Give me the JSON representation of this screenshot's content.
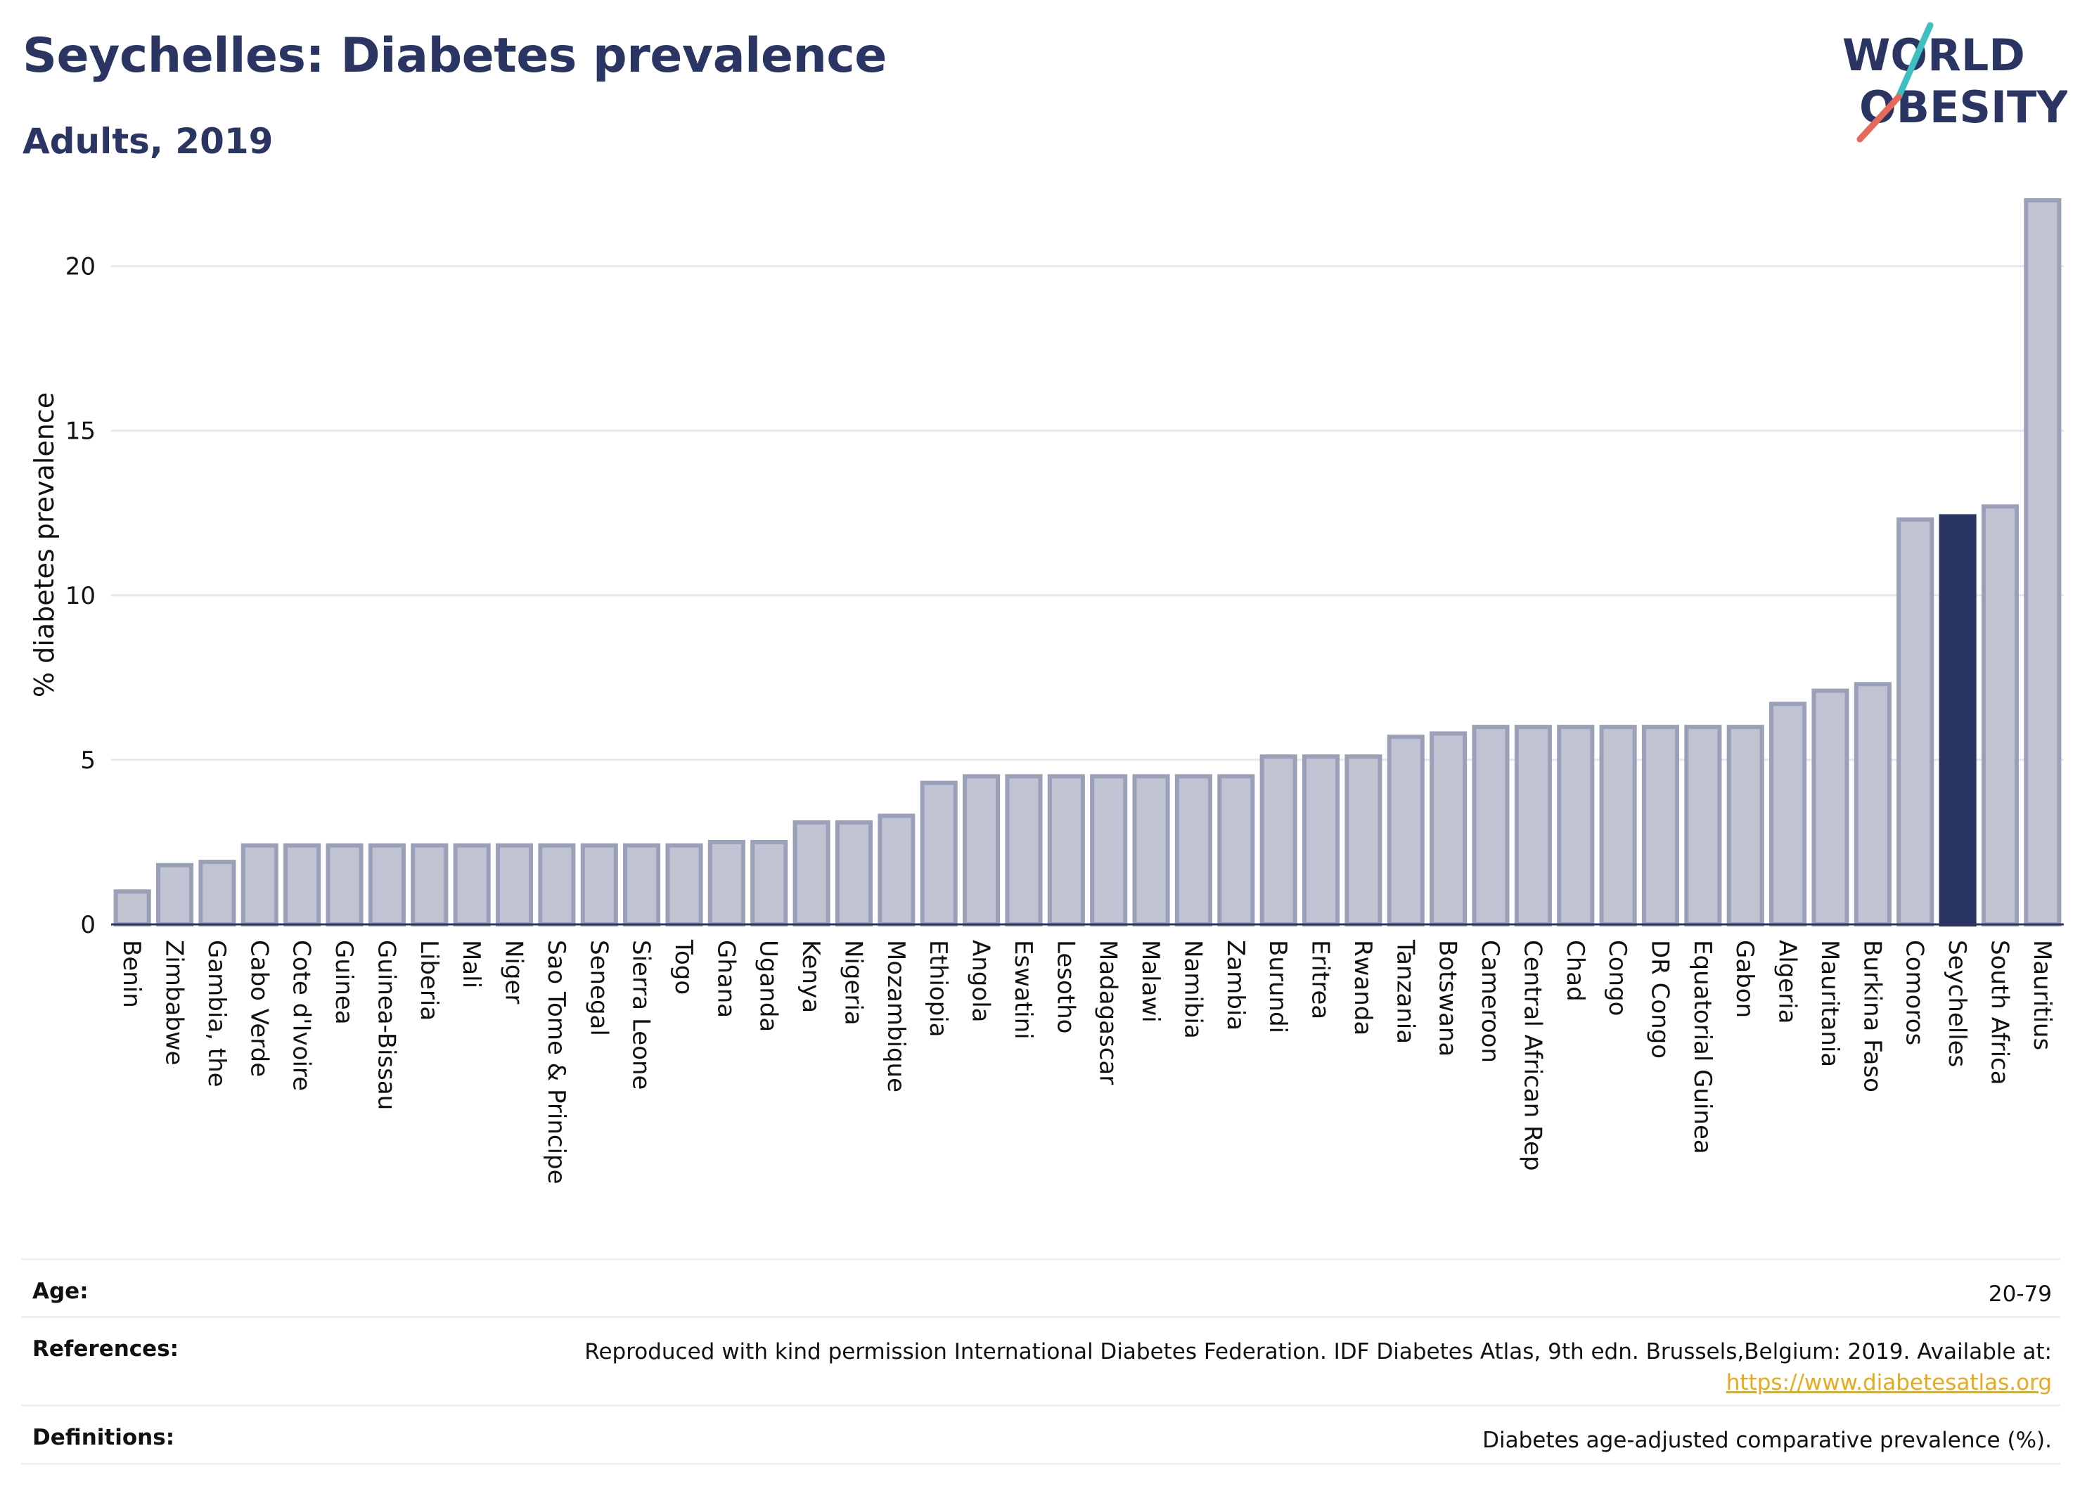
{
  "header": {
    "title": "Seychelles: Diabetes prevalence",
    "subtitle": "Adults, 2019"
  },
  "logo": {
    "line1": "WORLD",
    "line2": "OBESITY",
    "colors": {
      "text": "#2a3563",
      "slash_teal": "#3fbfbf",
      "slash_coral": "#e8695a"
    }
  },
  "chart_data": {
    "type": "bar",
    "title": "Seychelles: Diabetes prevalence",
    "subtitle": "Adults, 2019",
    "xlabel": "",
    "ylabel": "% diabetes prevalence",
    "ylim": [
      0,
      22
    ],
    "yticks": [
      0,
      5,
      10,
      15,
      20
    ],
    "grid": true,
    "highlight": "Seychelles",
    "colors": {
      "bar": "#bfc3d2",
      "bar_edge": "#9aa0b8",
      "highlight": "#2a3563",
      "grid": "#e6e8ec",
      "axis": "#2a3563"
    },
    "categories": [
      "Benin",
      "Zimbabwe",
      "Gambia, the",
      "Cabo Verde",
      "Cote d'Ivoire",
      "Guinea",
      "Guinea-Bissau",
      "Liberia",
      "Mali",
      "Niger",
      "Sao Tome & Principe",
      "Senegal",
      "Sierra Leone",
      "Togo",
      "Ghana",
      "Uganda",
      "Kenya",
      "Nigeria",
      "Mozambique",
      "Ethiopia",
      "Angola",
      "Eswatini",
      "Lesotho",
      "Madagascar",
      "Malawi",
      "Namibia",
      "Zambia",
      "Burundi",
      "Eritrea",
      "Rwanda",
      "Tanzania",
      "Botswana",
      "Cameroon",
      "Central African Rep",
      "Chad",
      "Congo",
      "DR Congo",
      "Equatorial Guinea",
      "Gabon",
      "Algeria",
      "Mauritania",
      "Burkina Faso",
      "Comoros",
      "Seychelles",
      "South Africa",
      "Mauritius"
    ],
    "values": [
      1.0,
      1.8,
      1.9,
      2.4,
      2.4,
      2.4,
      2.4,
      2.4,
      2.4,
      2.4,
      2.4,
      2.4,
      2.4,
      2.4,
      2.5,
      2.5,
      3.1,
      3.1,
      3.3,
      4.3,
      4.5,
      4.5,
      4.5,
      4.5,
      4.5,
      4.5,
      4.5,
      5.1,
      5.1,
      5.1,
      5.7,
      5.8,
      6.0,
      6.0,
      6.0,
      6.0,
      6.0,
      6.0,
      6.0,
      6.7,
      7.1,
      7.3,
      12.3,
      12.4,
      12.7,
      22.0
    ]
  },
  "info": {
    "age_label": "Age:",
    "age_value": "20-79",
    "references_label": "References:",
    "references_text": "Reproduced with kind permission International Diabetes Federation. IDF Diabetes Atlas, 9th edn. Brussels,Belgium: 2019. Available at:",
    "references_link": "https://www.diabetesatlas.org",
    "definitions_label": "Definitions:",
    "definitions_value": "Diabetes age-adjusted comparative prevalence (%)."
  }
}
